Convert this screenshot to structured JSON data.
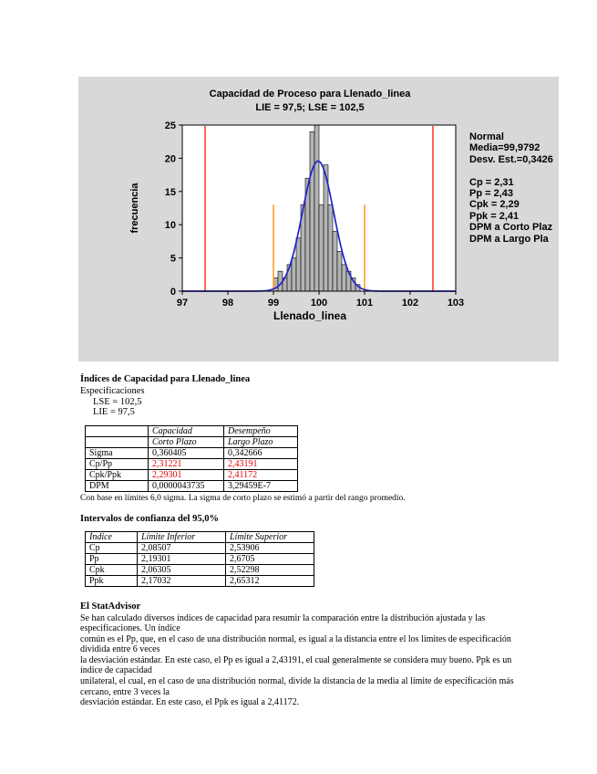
{
  "chart": {
    "title_line1": "Capacidad de Proceso para  Llenado_linea",
    "title_line2": "LIE = 97,5; LSE = 102,5",
    "legend": {
      "lines": [
        "Normal",
        "Media=99,9792",
        "Desv. Est.=0,3426",
        "",
        "Cp = 2,31",
        "Pp = 2,43",
        "Cpk = 2,29",
        "Ppk = 2,41",
        "DPM a Corto Plaz",
        "DPM a Largo Pla"
      ]
    }
  },
  "chart_data": {
    "type": "bar",
    "title": "Capacidad de Proceso para  Llenado_linea",
    "subtitle": "LIE = 97,5; LSE = 102,5",
    "xlabel": "Llenado_linea",
    "ylabel": "frecuencia",
    "xlim": [
      97,
      103
    ],
    "ylim": [
      0,
      25
    ],
    "x_ticks": [
      97,
      98,
      99,
      100,
      101,
      102,
      103
    ],
    "y_ticks": [
      0,
      5,
      10,
      15,
      20,
      25
    ],
    "bin_width": 0.1,
    "bins": [
      {
        "x": 99.0,
        "h": 2
      },
      {
        "x": 99.1,
        "h": 3
      },
      {
        "x": 99.2,
        "h": 2
      },
      {
        "x": 99.3,
        "h": 4
      },
      {
        "x": 99.4,
        "h": 5
      },
      {
        "x": 99.5,
        "h": 8
      },
      {
        "x": 99.6,
        "h": 13
      },
      {
        "x": 99.7,
        "h": 17
      },
      {
        "x": 99.8,
        "h": 24
      },
      {
        "x": 99.9,
        "h": 25
      },
      {
        "x": 100.0,
        "h": 13
      },
      {
        "x": 100.1,
        "h": 19
      },
      {
        "x": 100.2,
        "h": 13
      },
      {
        "x": 100.3,
        "h": 9
      },
      {
        "x": 100.4,
        "h": 6
      },
      {
        "x": 100.5,
        "h": 4
      },
      {
        "x": 100.6,
        "h": 3
      },
      {
        "x": 100.7,
        "h": 2
      },
      {
        "x": 100.8,
        "h": 1
      }
    ],
    "normal_curve": {
      "mean": 99.9792,
      "sd": 0.34266,
      "peak": 19.6,
      "color": "#2222cc"
    },
    "spec_lines": {
      "values": [
        97.5,
        102.5
      ],
      "color": "#ff3b30"
    },
    "inner_lines": {
      "values": [
        99.0,
        101.0
      ],
      "top": 13,
      "color": "#ff9d23"
    },
    "bar_fill": "#b4b4b4",
    "bar_stroke": "#000000"
  },
  "section": {
    "title": "Índices de Capacidad para Llenado_linea",
    "spec_label": "Especificaciones",
    "lse": "LSE = 102,5",
    "lie": "LIE = 97,5",
    "note": "Con base en límites 6,0 sigma. La sigma de corto plazo se estimó a partir del rango promedio.",
    "ci_title": "Intervalos de confianza del 95,0%"
  },
  "capacity_table": {
    "header_row1": [
      "",
      "Capacidad",
      "Desempeño"
    ],
    "header_row2": [
      "",
      "Corto Plazo",
      "Largo Plazo"
    ],
    "rows": [
      [
        "Sigma",
        "0,360405",
        "0,342666"
      ],
      [
        "Cp/Pp",
        "2,31221",
        "2,43191"
      ],
      [
        "Cpk/Ppk",
        "2,29301",
        "2,41172"
      ],
      [
        "DPM",
        "0,0000043735",
        "3,29459E-7"
      ]
    ]
  },
  "ci_table": {
    "header": [
      "Índice",
      "Límite Inferior",
      "Límite Superior"
    ],
    "rows": [
      [
        "Cp",
        "2,08507",
        "2,53906"
      ],
      [
        "Pp",
        "2,19301",
        "2,6705"
      ],
      [
        "Cpk",
        "2,06305",
        "2,52298"
      ],
      [
        "Ppk",
        "2,17032",
        "2,65312"
      ]
    ]
  },
  "advisor": {
    "heading": "El StatAdvisor",
    "lines": [
      "Se han calculado diversos índices de capacidad para resumir la comparación entre la distribución ajustada y las",
      "especificaciones.  Un índice",
      "común es el Pp, que, en el caso de una distribución normal, es igual a la distancia entre el los límites de especificación",
      "dividida entre 6 veces",
      "la desviación estándar.  En este caso, el Pp es igual a 2,43191, el cual generalmente se considera muy bueno.  Ppk es un",
      "índice de capacidad",
      "unilateral, el cual, en el caso de una distribución normal, divide la distancia de la media al límite de especificación más",
      "cercano, entre 3 veces la",
      "desviación estándar.  En este caso, el Ppk es igual a 2,41172."
    ]
  }
}
